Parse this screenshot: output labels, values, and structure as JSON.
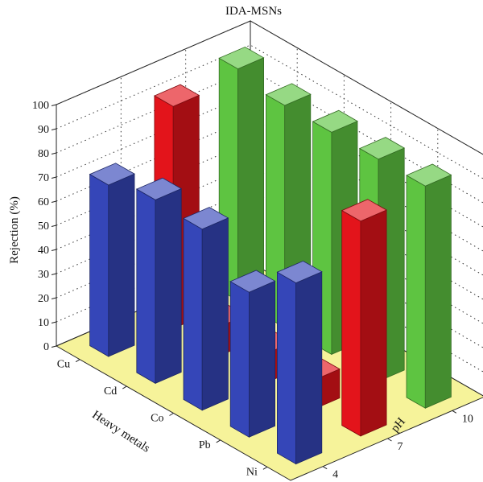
{
  "chart_data": {
    "type": "bar3d",
    "title": "IDA-MSNs",
    "zlabel": "Rejection (%)",
    "xlabel": "Heavy metals",
    "ylabel": "pH",
    "zlim": [
      0,
      100
    ],
    "z_ticks": [
      "0",
      "10",
      "20",
      "30",
      "40",
      "50",
      "60",
      "70",
      "80",
      "90",
      "100"
    ],
    "categories": [
      "Cu",
      "Cd",
      "Co",
      "Pb",
      "Ni"
    ],
    "ph_levels": [
      "4",
      "7",
      "10"
    ],
    "grid": true,
    "floor_color": "#f6f39a",
    "series": [
      {
        "ph": "4",
        "color": "#3546b8",
        "values": [
          71,
          76,
          75,
          60,
          75
        ]
      },
      {
        "ph": "7",
        "color": "#e3141b",
        "values": [
          92,
          12,
          12,
          12,
          89
        ]
      },
      {
        "ph": "10",
        "color": "#5ec441",
        "values": [
          96,
          92,
          92,
          92,
          92
        ]
      }
    ]
  }
}
